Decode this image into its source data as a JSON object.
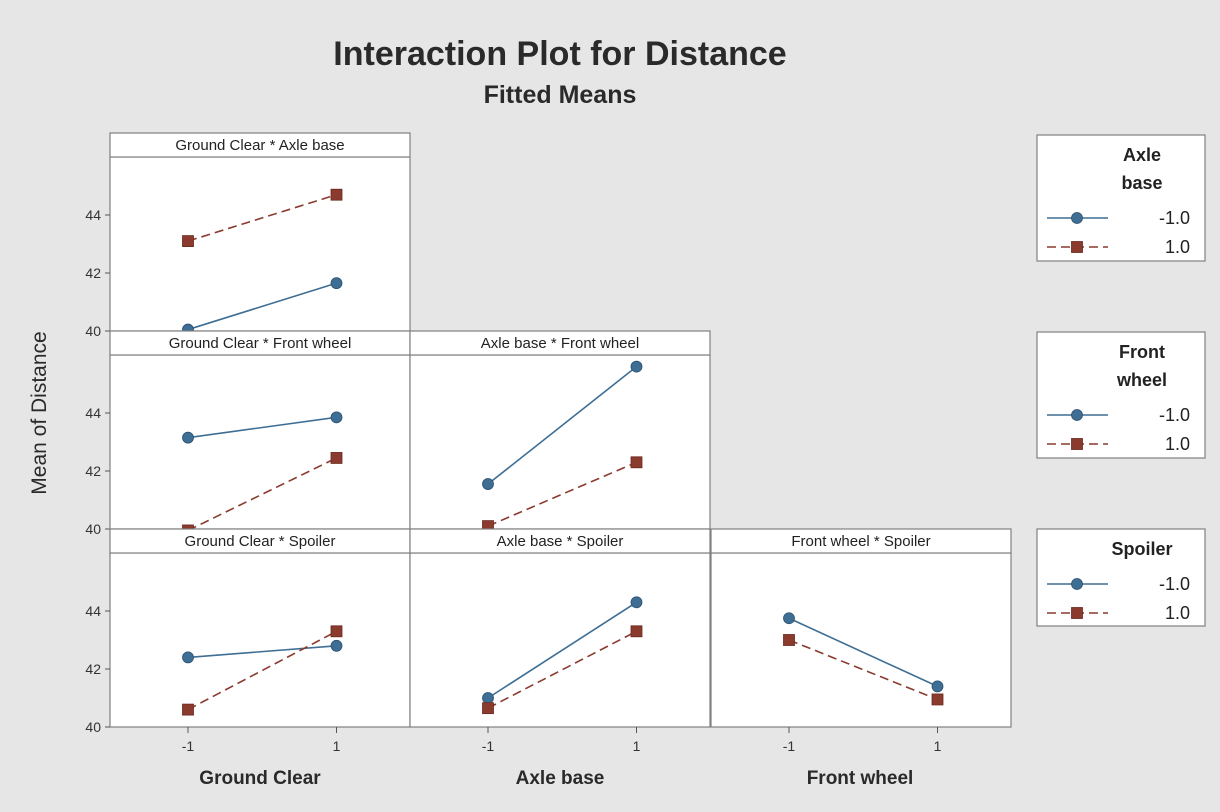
{
  "chart_data": {
    "type": "line",
    "title": "Interaction Plot for Distance",
    "subtitle": "Fitted Means",
    "ylabel": "Mean of Distance",
    "ylim": [
      40,
      46
    ],
    "yticks": [
      "40",
      "42",
      "44"
    ],
    "xticks": [
      "-1",
      "1"
    ],
    "x": [
      -1,
      1
    ],
    "xlabels": [
      "Ground Clear",
      "Axle base",
      "Front wheel"
    ],
    "grid": false,
    "legend_position": "right",
    "series_colors": {
      "-1.0": "#3e6e94",
      "1.0": "#8b3a2e"
    },
    "legends": [
      {
        "title_lines": [
          "Axle",
          "base"
        ],
        "entries": [
          "-1.0",
          "1.0"
        ]
      },
      {
        "title_lines": [
          "Front",
          "wheel"
        ],
        "entries": [
          "-1.0",
          "1.0"
        ]
      },
      {
        "title_lines": [
          "Spoiler"
        ],
        "entries": [
          "-1.0",
          "1.0"
        ]
      }
    ],
    "panels": [
      {
        "title": "Ground Clear * Axle base",
        "row": 0,
        "col": 0,
        "series": [
          {
            "name": "-1.0",
            "values": [
              40.05,
              41.65
            ]
          },
          {
            "name": "1.0",
            "values": [
              43.1,
              44.7
            ]
          }
        ]
      },
      {
        "title": "Ground Clear * Front wheel",
        "row": 1,
        "col": 0,
        "series": [
          {
            "name": "-1.0",
            "values": [
              43.15,
              43.85
            ]
          },
          {
            "name": "1.0",
            "values": [
              39.95,
              42.45
            ]
          }
        ]
      },
      {
        "title": "Axle base * Front wheel",
        "row": 1,
        "col": 1,
        "series": [
          {
            "name": "-1.0",
            "values": [
              41.55,
              45.6
            ]
          },
          {
            "name": "1.0",
            "values": [
              40.1,
              42.3
            ]
          }
        ]
      },
      {
        "title": "Ground Clear * Spoiler",
        "row": 2,
        "col": 0,
        "series": [
          {
            "name": "-1.0",
            "values": [
              42.4,
              42.8
            ]
          },
          {
            "name": "1.0",
            "values": [
              40.6,
              43.3
            ]
          }
        ]
      },
      {
        "title": "Axle base * Spoiler",
        "row": 2,
        "col": 1,
        "series": [
          {
            "name": "-1.0",
            "values": [
              41.0,
              44.3
            ]
          },
          {
            "name": "1.0",
            "values": [
              40.65,
              43.3
            ]
          }
        ]
      },
      {
        "title": "Front wheel * Spoiler",
        "row": 2,
        "col": 2,
        "series": [
          {
            "name": "-1.0",
            "values": [
              43.75,
              41.4
            ]
          },
          {
            "name": "1.0",
            "values": [
              43.0,
              40.95
            ]
          }
        ]
      }
    ]
  }
}
